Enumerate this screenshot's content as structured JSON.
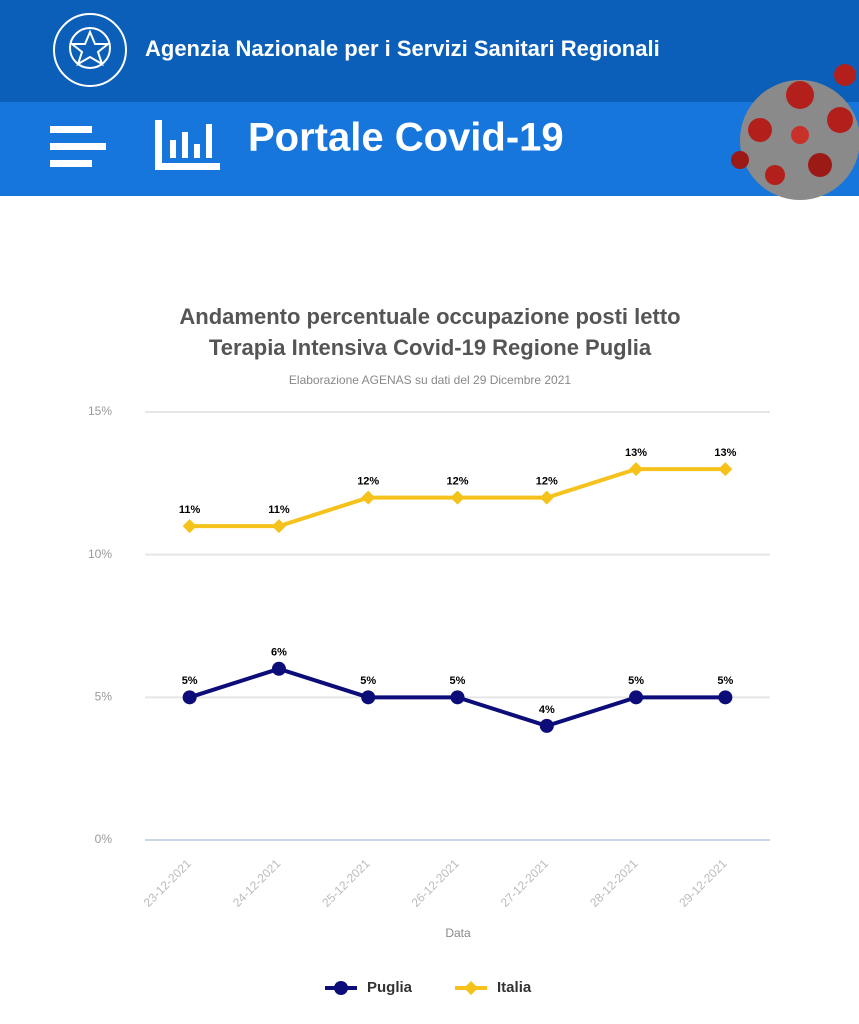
{
  "header": {
    "agency": "Agenzia Nazionale per i Servizi Sanitari Regionali",
    "portal": "Portale Covid-19"
  },
  "chart_data": {
    "type": "line",
    "title": [
      "Andamento percentuale occupazione posti letto",
      "Terapia Intensiva Covid-19 Regione Puglia"
    ],
    "subtitle": "Elaborazione AGENAS su dati del 29 Dicembre 2021",
    "x_label": "Data",
    "categories": [
      "23-12-2021",
      "24-12-2021",
      "25-12-2021",
      "26-12-2021",
      "27-12-2021",
      "28-12-2021",
      "29-12-2021"
    ],
    "series": [
      {
        "name": "Puglia",
        "color": "#0d0d7a",
        "marker": "circle",
        "values": [
          5,
          6,
          5,
          5,
          4,
          5,
          5
        ],
        "value_labels": [
          "5%",
          "6%",
          "5%",
          "5%",
          "4%",
          "5%",
          "5%"
        ]
      },
      {
        "name": "Italia",
        "color": "#f5c21b",
        "marker": "diamond",
        "values": [
          11,
          11,
          12,
          12,
          12,
          13,
          13
        ],
        "value_labels": [
          "11%",
          "11%",
          "12%",
          "12%",
          "12%",
          "13%",
          "13%"
        ]
      }
    ],
    "ylim": [
      0,
      15
    ],
    "yticks": [
      {
        "value": 0,
        "label": "0%"
      },
      {
        "value": 5,
        "label": "5%"
      },
      {
        "value": 10,
        "label": "10%"
      },
      {
        "value": 15,
        "label": "15%"
      }
    ],
    "grid": true,
    "legend": "bottom"
  }
}
